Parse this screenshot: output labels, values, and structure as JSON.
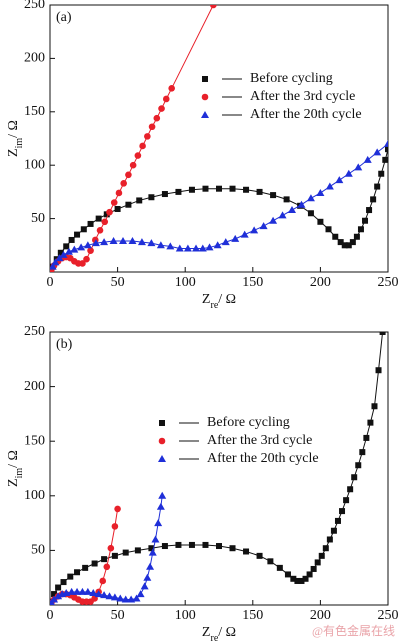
{
  "chart_data": [
    {
      "type": "scatter",
      "panel_label": "(a)",
      "x_label": [
        "Z",
        "re",
        "/ Ω"
      ],
      "y_label": [
        "Z",
        "im",
        "/ Ω"
      ],
      "xlim": [
        0,
        250
      ],
      "ylim": [
        0,
        250
      ],
      "xticks": [
        0,
        50,
        100,
        150,
        200,
        250
      ],
      "yticks": [
        50,
        100,
        150,
        200,
        250
      ],
      "legend": "upper right",
      "series": [
        {
          "name": "Before cycling",
          "color": "#111111",
          "marker": "square",
          "x": [
            2,
            5,
            8,
            12,
            16,
            20,
            25,
            30,
            36,
            42,
            50,
            58,
            66,
            75,
            85,
            95,
            105,
            115,
            125,
            135,
            145,
            155,
            165,
            175,
            185,
            193,
            200,
            206,
            211,
            215,
            218,
            221,
            224,
            227,
            230,
            233,
            236,
            239,
            242,
            245,
            248,
            250
          ],
          "values": [
            5,
            12,
            18,
            24,
            30,
            35,
            40,
            45,
            50,
            54,
            59,
            63,
            67,
            70,
            73,
            75,
            77,
            78,
            78,
            78,
            77,
            75,
            72,
            68,
            62,
            55,
            47,
            40,
            33,
            28,
            25,
            25,
            28,
            33,
            40,
            48,
            58,
            68,
            80,
            92,
            105,
            115
          ]
        },
        {
          "name": "After the 3rd cycle",
          "color": "#e8202a",
          "marker": "circle",
          "x": [
            1,
            3,
            6,
            9,
            12,
            15,
            18,
            21,
            24,
            27,
            30,
            33.5,
            37,
            40.5,
            44,
            47.5,
            51,
            54.5,
            58,
            61.5,
            65,
            68.5,
            72,
            75.5,
            79,
            82.5,
            86,
            90,
            120.8
          ],
          "values": [
            2,
            6,
            10,
            13,
            14,
            13,
            10,
            8,
            8,
            12,
            20,
            30,
            39,
            47,
            56,
            65,
            74,
            83,
            91,
            100,
            109,
            118,
            127,
            136,
            144,
            153,
            162,
            172,
            250
          ]
        },
        {
          "name": "After the 20th cycle",
          "color": "#1f2fd8",
          "marker": "triangle",
          "x": [
            2,
            4,
            7,
            10,
            14,
            18,
            23,
            28,
            34,
            40,
            47,
            54,
            61,
            68,
            75,
            82,
            89,
            96,
            102,
            108,
            113,
            118,
            124,
            130,
            137,
            144,
            151,
            158,
            165,
            172,
            179,
            186,
            193,
            200,
            207,
            214,
            221,
            228,
            235,
            242,
            250
          ],
          "values": [
            5,
            9,
            13,
            16,
            19,
            21,
            23,
            25,
            27,
            28,
            29,
            29,
            29,
            28,
            27,
            25,
            24,
            22,
            22,
            22,
            22,
            23,
            25,
            28,
            31,
            35,
            39,
            43,
            48,
            53,
            58,
            63,
            69,
            74,
            80,
            86,
            92,
            98,
            105,
            112,
            120
          ]
        }
      ]
    },
    {
      "type": "scatter",
      "panel_label": "(b)",
      "x_label": [
        "Z",
        "re",
        "/ Ω"
      ],
      "y_label": [
        "Z",
        "im",
        "/ Ω"
      ],
      "xlim": [
        0,
        250
      ],
      "ylim": [
        0,
        250
      ],
      "xticks": [
        0,
        50,
        100,
        150,
        200,
        250
      ],
      "yticks": [
        50,
        100,
        150,
        200,
        250
      ],
      "legend": "upper center",
      "series": [
        {
          "name": "Before cycling",
          "color": "#111111",
          "marker": "square",
          "x": [
            1,
            3,
            6,
            10,
            15,
            20,
            26,
            33,
            40,
            48,
            56,
            65,
            75,
            85,
            95,
            105,
            115,
            125,
            135,
            145,
            155,
            163,
            170,
            176,
            180,
            183,
            186,
            189,
            192,
            195,
            198,
            201,
            204,
            207,
            210,
            213,
            216,
            219,
            222,
            225,
            228,
            231,
            234,
            237,
            240,
            243,
            246
          ],
          "values": [
            3,
            10,
            16,
            21,
            26,
            30,
            34,
            38,
            42,
            45,
            48,
            50,
            52,
            54,
            55,
            55,
            55,
            54,
            52,
            49,
            45,
            40,
            34,
            28,
            24,
            22,
            22,
            24,
            28,
            33,
            39,
            45,
            52,
            60,
            68,
            77,
            86,
            96,
            106,
            117,
            128,
            140,
            153,
            167,
            182,
            215,
            250
          ]
        },
        {
          "name": "After the 3rd cycle",
          "color": "#e8202a",
          "marker": "circle",
          "x": [
            1,
            3,
            6,
            9,
            12,
            15,
            18,
            21,
            24,
            27,
            30,
            33,
            36,
            39,
            42,
            45,
            48,
            50
          ],
          "values": [
            2,
            5,
            8,
            10,
            10,
            9,
            7,
            5,
            3,
            3,
            3,
            6,
            12,
            22,
            35,
            52,
            72,
            88
          ]
        },
        {
          "name": "After the 20th cycle",
          "color": "#1f2fd8",
          "marker": "triangle",
          "x": [
            1,
            3,
            6,
            9,
            12,
            16,
            20,
            24,
            28,
            32,
            36,
            40,
            44,
            48,
            52,
            56,
            60,
            64,
            67,
            70,
            72,
            74,
            76,
            78,
            80,
            82,
            83
          ],
          "values": [
            2,
            5,
            8,
            10,
            11,
            12,
            12,
            12,
            12,
            11,
            10,
            9,
            8,
            7,
            6,
            5,
            5,
            6,
            10,
            17,
            25,
            35,
            48,
            60,
            75,
            90,
            100
          ]
        }
      ]
    }
  ],
  "watermark": "@有色金属在线"
}
